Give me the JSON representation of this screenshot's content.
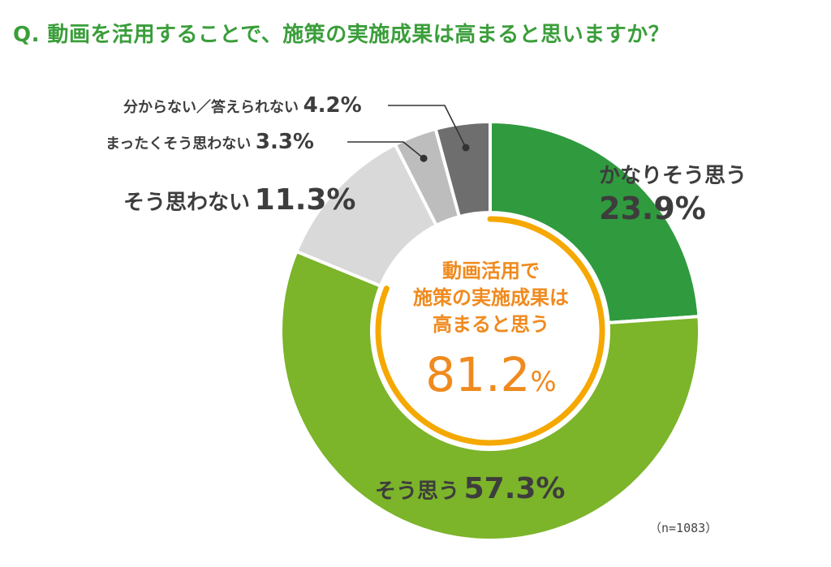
{
  "title": "Q. 動画を活用することで、施策の実施成果は高まると思いますか？",
  "note": "（n=1083）",
  "center": {
    "lines": [
      "動画活用で",
      "施策の実施成果は",
      "高まると思う"
    ],
    "value": "81.2",
    "unit": "%"
  },
  "chart_data": {
    "type": "pie",
    "subtype": "donut",
    "categories": [
      "かなりそう思う",
      "そう思う",
      "そう思わない",
      "まったくそう思わない",
      "分からない／答えられない"
    ],
    "values": [
      23.9,
      57.3,
      11.3,
      3.3,
      4.2
    ],
    "labels": [
      "23.9%",
      "57.3%",
      "11.3%",
      "3.3%",
      "4.2%"
    ],
    "colors": [
      "#2f9a3e",
      "#7cb42a",
      "#d9d9d9",
      "#bdbdbd",
      "#6e6e6e"
    ],
    "start": "12 o'clock",
    "direction": "clockwise",
    "highlight_arc": {
      "categories": [
        "かなりそう思う",
        "そう思う"
      ],
      "total": 81.2,
      "color": "#f5a800"
    }
  }
}
